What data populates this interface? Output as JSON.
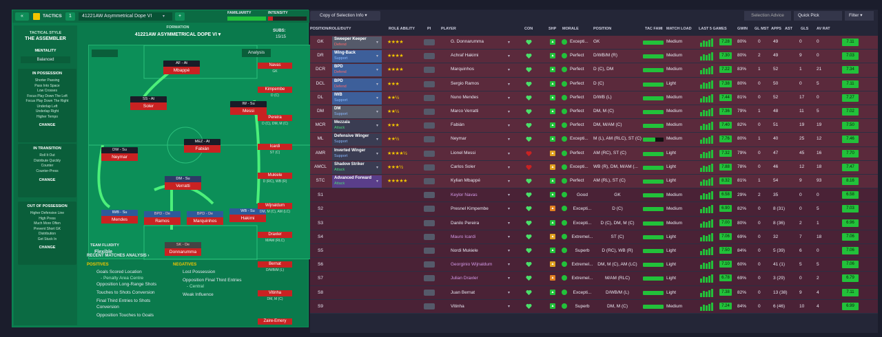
{
  "tactics": {
    "tab_label": "TACTICS",
    "slot": "1",
    "tactic_name": "41221AW Asymmetrical Dope VI",
    "familiarity_label": "FAMILIARITY",
    "intensity_label": "INTENSITY",
    "style_label": "TACTICAL STYLE",
    "style_value": "THE ASSEMBLER",
    "mentality_label": "MENTALITY",
    "mentality_value": "Balanced",
    "formation_label": "FORMATION",
    "formation_value": "41221AW ASYMMETRICAL DOPE VI",
    "subs_label": "SUBS:",
    "subs_value": "15/15",
    "analysis": "Analysis",
    "team_fluidity_label": "TEAM FLUIDITY",
    "team_fluidity": "Flexible"
  },
  "possession": {
    "title": "IN POSSESSION",
    "items": [
      "Shorter Passing",
      "Pass Into Space",
      "Low Crosses",
      "Focus Play Down The Left",
      "Focus Play Down The Right",
      "Underlap Left",
      "Underlap Right",
      "Higher Tempo"
    ],
    "change": "CHANGE"
  },
  "transition": {
    "title": "IN TRANSITION",
    "items": [
      "Roll It Out",
      "Distribute Quickly",
      "Counter",
      "Counter-Press"
    ],
    "change": "CHANGE"
  },
  "outpos": {
    "title": "OUT OF POSSESSION",
    "items": [
      "Higher Defensive Line",
      "High Press",
      "Much More Often",
      "Prevent Short GK",
      "Distribution",
      "Get Stuck In"
    ],
    "change": "CHANGE"
  },
  "pitch": [
    {
      "role": "AF - At",
      "name": "Mbappé"
    },
    {
      "role": "SS - At",
      "name": "Soler"
    },
    {
      "role": "IW - Su",
      "name": "Messi"
    },
    {
      "role": "MEZ - At",
      "name": "Fabián"
    },
    {
      "role": "DW - Su",
      "name": "Neymar"
    },
    {
      "role": "DM - Su",
      "name": "Verratti"
    },
    {
      "role": "IWB - Su",
      "name": "Mendes"
    },
    {
      "role": "BPD - De",
      "name": "Ramos"
    },
    {
      "role": "BPD - De",
      "name": "Marquinhos"
    },
    {
      "role": "WB - Su",
      "name": "Hakimi"
    },
    {
      "role": "SK - De",
      "name": "Donnarumma"
    }
  ],
  "subs": [
    {
      "name": "Navas",
      "pos": "GK"
    },
    {
      "name": "Kimpembe",
      "pos": "D (C)"
    },
    {
      "name": "Pereira",
      "pos": "D (C), DM, M (C)"
    },
    {
      "name": "Icardi",
      "pos": "ST (C)"
    },
    {
      "name": "Mukiele",
      "pos": "D (RC), WB (R)"
    },
    {
      "name": "Wijnaldum",
      "pos": "DM, M (C), AM (LC)"
    },
    {
      "name": "Draxler",
      "pos": "M/AM (RLC)"
    },
    {
      "name": "Bernat",
      "pos": "D/WB/M (L)"
    },
    {
      "name": "Vitinha",
      "pos": "DM, M (C)"
    },
    {
      "name": "Zaire-Emery",
      "pos": ""
    }
  ],
  "analysis": {
    "title": "RECENT MATCHES ANALYSIS",
    "pos_label": "POSITIVES",
    "neg_label": "NEGATIVES",
    "positives": [
      "Goals Scored Location",
      "- Penalty Area Centre",
      "Opposition Long-Range Shots",
      "Touches to Shots Conversion",
      "Final Third Entries to Shots",
      "Conversion",
      "Opposition Touches to Goals"
    ],
    "negatives": [
      "Lost Possession",
      "Opposition Final Third Entries",
      "- Central",
      "Weak Influence"
    ]
  },
  "right_toolbar": {
    "copy_btn": "Copy of Selection Info",
    "advice": "Selection Advice",
    "quick_pick": "Quick Pick",
    "filter": "Filter"
  },
  "headers": [
    "POSITION/ROLE/DUTY",
    "ROLE ABILITY",
    "PI",
    "PLAYER",
    "CON",
    "SHP",
    "MORALE",
    "POSITION",
    "TAC FAMI",
    "MATCH LOAD",
    "LAST 5 GAMES",
    "GWIN",
    "GL MST",
    "APPS",
    "AST",
    "GLS",
    "AV RAT"
  ],
  "rows": [
    {
      "pos": "GK",
      "role": "Sweeper Keeper",
      "duty": "Defend",
      "stars": "★★★★",
      "player": "G. Donnarumma",
      "morale": "Excepti...",
      "position": "GK",
      "load": "Medium",
      "form": "7.28",
      "gwin": "80%",
      "glmst": "0",
      "apps": "49",
      "ast": "0",
      "gls": "0",
      "av": "7.11"
    },
    {
      "pos": "DR",
      "role": "Wing-Back",
      "duty": "Support",
      "stars": "★★★★",
      "player": "Achraf Hakimi",
      "morale": "Perfect",
      "position": "D/WB/M (R)",
      "load": "Medium",
      "form": "7.30",
      "gwin": "80%",
      "glmst": "2",
      "apps": "49",
      "ast": "9",
      "gls": "0",
      "av": "7.03"
    },
    {
      "pos": "DCR",
      "role": "BPD",
      "duty": "Defend",
      "stars": "★★★★",
      "player": "Marquinhos",
      "morale": "Perfect",
      "position": "D (C), DM",
      "load": "Medium",
      "form": "7.22",
      "gwin": "83%",
      "glmst": "1",
      "apps": "52",
      "ast": "1",
      "gls": "21",
      "av": "7.34"
    },
    {
      "pos": "DCL",
      "role": "BPD",
      "duty": "Defend",
      "stars": "★★★",
      "player": "Sergio Ramos",
      "morale": "Perfect",
      "position": "D (C)",
      "load": "Light",
      "form": "7.38",
      "gwin": "80%",
      "glmst": "0",
      "apps": "50",
      "ast": "0",
      "gls": "5",
      "av": "7.11"
    },
    {
      "pos": "DL",
      "role": "IWB",
      "duty": "Support",
      "stars": "★★½",
      "player": "Nuno Mendes",
      "morale": "Perfect",
      "position": "D/WB (L)",
      "load": "Medium",
      "form": "7.44",
      "gwin": "81%",
      "glmst": "0",
      "apps": "52",
      "ast": "17",
      "gls": "0",
      "av": "7.27"
    },
    {
      "pos": "DM",
      "role": "DM",
      "duty": "Support",
      "stars": "★★½",
      "player": "Marco Verratti",
      "morale": "Perfect",
      "position": "DM, M (C)",
      "load": "Medium",
      "form": "7.36",
      "gwin": "79%",
      "glmst": "1",
      "apps": "48",
      "ast": "11",
      "gls": "5",
      "av": "7.02"
    },
    {
      "pos": "MCR",
      "role": "Mezzala",
      "duty": "Attack",
      "stars": "★★★",
      "player": "Fabián",
      "morale": "Perfect",
      "position": "DM, M/AM (C)",
      "load": "Medium",
      "form": "7.40",
      "gwin": "82%",
      "glmst": "0",
      "apps": "51",
      "ast": "19",
      "gls": "19",
      "av": "7.50"
    },
    {
      "pos": "ML",
      "role": "Defensive Winger",
      "duty": "Support",
      "stars": "★★½",
      "player": "Neymar",
      "morale": "Excepti...",
      "position": "M (L), AM (RLC), ST (C)",
      "load": "Medium",
      "form": "7.76",
      "gwin": "80%",
      "glmst": "1",
      "apps": "40",
      "ast": "25",
      "gls": "12",
      "av": "7.46"
    },
    {
      "pos": "AMR",
      "role": "Inverted Winger",
      "duty": "Support",
      "stars": "★★★★½",
      "player": "Lionel Messi",
      "morale": "Perfect",
      "position": "AM (RC), ST (C)",
      "load": "Light",
      "form": "7.32",
      "gwin": "79%",
      "glmst": "0",
      "apps": "47",
      "ast": "45",
      "gls": "16",
      "av": "7.70"
    },
    {
      "pos": "AMCL",
      "role": "Shadow Striker",
      "duty": "Attack",
      "stars": "★★★½",
      "player": "Carlos Soler",
      "morale": "Excepti...",
      "position": "WB (R), DM, M/AM (...",
      "load": "Light",
      "form": "7.88",
      "gwin": "78%",
      "glmst": "0",
      "apps": "46",
      "ast": "12",
      "gls": "18",
      "av": "7.47"
    },
    {
      "pos": "STC",
      "role": "Advanced Forward",
      "duty": "Attack",
      "stars": "★★★★★",
      "player": "Kylian Mbappé",
      "morale": "Perfect",
      "position": "AM (RL), ST (C)",
      "load": "Light",
      "form": "8.32",
      "gwin": "81%",
      "glmst": "1",
      "apps": "54",
      "ast": "9",
      "gls": "93",
      "av": "8.16"
    },
    {
      "pos": "S1",
      "role": "",
      "duty": "",
      "stars": "",
      "player": "Keylor Navas",
      "morale": "Good",
      "position": "GK",
      "load": "Medium",
      "form": "6.58",
      "gwin": "29%",
      "glmst": "2",
      "apps": "35",
      "ast": "0",
      "gls": "0",
      "av": "6.58"
    },
    {
      "pos": "S2",
      "role": "",
      "duty": "",
      "stars": "",
      "player": "Presnel Kimpembe",
      "morale": "Excepti...",
      "position": "D (C)",
      "load": "Medium",
      "form": "6.90",
      "gwin": "82%",
      "glmst": "0",
      "apps": "8 (31)",
      "ast": "0",
      "gls": "5",
      "av": "7.03"
    },
    {
      "pos": "S3",
      "role": "",
      "duty": "",
      "stars": "",
      "player": "Danilo Pereira",
      "morale": "Excepti...",
      "position": "D (C), DM, M (C)",
      "load": "Medium",
      "form": "7.00",
      "gwin": "80%",
      "glmst": "0",
      "apps": "8 (36)",
      "ast": "2",
      "gls": "1",
      "av": "6.96"
    },
    {
      "pos": "S4",
      "role": "",
      "duty": "",
      "stars": "",
      "player": "Mauro Icardi",
      "morale": "Extremel...",
      "position": "ST (C)",
      "load": "Light",
      "form": "7.06",
      "gwin": "69%",
      "glmst": "0",
      "apps": "32",
      "ast": "7",
      "gls": "18",
      "av": "7.06"
    },
    {
      "pos": "S5",
      "role": "",
      "duty": "",
      "stars": "",
      "player": "Nordi Mukiele",
      "morale": "Superb",
      "position": "D (RC), WB (R)",
      "load": "Light",
      "form": "7.50",
      "gwin": "84%",
      "glmst": "0",
      "apps": "5 (39)",
      "ast": "6",
      "gls": "0",
      "av": "7.06"
    },
    {
      "pos": "S6",
      "role": "",
      "duty": "",
      "stars": "",
      "player": "Georginio Wijnaldum",
      "morale": "Extremel...",
      "position": "DM, M (C), AM (LC)",
      "load": "Light",
      "form": "7.10",
      "gwin": "60%",
      "glmst": "0",
      "apps": "41 (1)",
      "ast": "5",
      "gls": "5",
      "av": "7.06"
    },
    {
      "pos": "S7",
      "role": "",
      "duty": "",
      "stars": "",
      "player": "Julian Draxler",
      "morale": "Extremel...",
      "position": "M/AM (RLC)",
      "load": "Light",
      "form": "6.78",
      "gwin": "69%",
      "glmst": "0",
      "apps": "3 (29)",
      "ast": "0",
      "gls": "2",
      "av": "6.79"
    },
    {
      "pos": "S8",
      "role": "",
      "duty": "",
      "stars": "",
      "player": "Juan Bernat",
      "morale": "Excepti...",
      "position": "D/WB/M (L)",
      "load": "Light",
      "form": "7.38",
      "gwin": "82%",
      "glmst": "0",
      "apps": "13 (38)",
      "ast": "9",
      "gls": "4",
      "av": "7.11"
    },
    {
      "pos": "S9",
      "role": "",
      "duty": "",
      "stars": "",
      "player": "Vitinha",
      "morale": "Superb",
      "position": "DM, M (C)",
      "load": "Medium",
      "form": "7.24",
      "gwin": "84%",
      "glmst": "0",
      "apps": "6 (46)",
      "ast": "10",
      "gls": "4",
      "av": "6.99"
    }
  ]
}
